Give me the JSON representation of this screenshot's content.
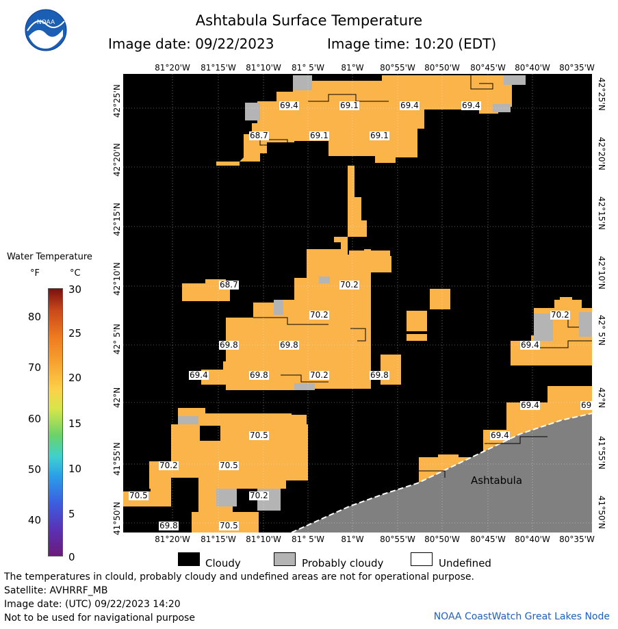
{
  "header": {
    "title": "Ashtabula Surface Temperature",
    "image_date": "Image date: 09/22/2023",
    "image_time": "Image time: 10:20 (EDT)"
  },
  "logo": {
    "name": "noaa-logo",
    "text": "NOAA"
  },
  "map": {
    "lon_labels": [
      "81°20'W",
      "81°15'W",
      "81°10'W",
      "81° 5'W",
      "81°W",
      "80°55'W",
      "80°50'W",
      "80°45'W",
      "80°40'W",
      "80°35'W"
    ],
    "lat_labels": [
      "42°25'N",
      "42°20'N",
      "42°15'N",
      "42°10'N",
      "42° 5'N",
      "42°N",
      "41°55'N",
      "41°50'N"
    ],
    "city": "Ashtabula",
    "temp_labels": [
      {
        "text": "69.4"
      },
      {
        "text": "69.1"
      },
      {
        "text": "69.4"
      },
      {
        "text": "69.4"
      },
      {
        "text": "68.7"
      },
      {
        "text": "69.1"
      },
      {
        "text": "69.1"
      },
      {
        "text": "68.7"
      },
      {
        "text": "70.2"
      },
      {
        "text": "70.2"
      },
      {
        "text": "69.8"
      },
      {
        "text": "69.8"
      },
      {
        "text": "69.4"
      },
      {
        "text": "69.8"
      },
      {
        "text": "70.2"
      },
      {
        "text": "69.8"
      },
      {
        "text": "70.2"
      },
      {
        "text": "69.4"
      },
      {
        "text": "70.5"
      },
      {
        "text": "70.2"
      },
      {
        "text": "70.5"
      },
      {
        "text": "70.5"
      },
      {
        "text": "70.2"
      },
      {
        "text": "69.8"
      },
      {
        "text": "70.5"
      },
      {
        "text": "69.4"
      },
      {
        "text": "69.4"
      },
      {
        "text": "69"
      }
    ],
    "colors": {
      "water_warm": "#fbb44a",
      "water_warm_alt": "#f9a93a",
      "cloudy": "#000000",
      "probably_cloudy": "#b4b4b4",
      "land": "#808080"
    }
  },
  "legend": {
    "title": "Water Temperature",
    "unit_f": "°F",
    "unit_c": "°C",
    "f_ticks": [
      "80",
      "70",
      "60",
      "50",
      "40"
    ],
    "c_ticks": [
      "30",
      "25",
      "20",
      "15",
      "10",
      "5",
      "0"
    ]
  },
  "key": {
    "cloudy": "Cloudy",
    "probably_cloudy": "Probably cloudy",
    "undefined": "Undefined"
  },
  "footer": {
    "line1": "The temperatures in clould, probably cloudy and undefined areas are not for operational purpose.",
    "line2": "Satellite: AVHRRF_MB",
    "line3": "Image date: (UTC) 09/22/2023  14:20",
    "line4": "Not to be used for navigational purpose",
    "credit": "NOAA CoastWatch Great Lakes Node"
  }
}
